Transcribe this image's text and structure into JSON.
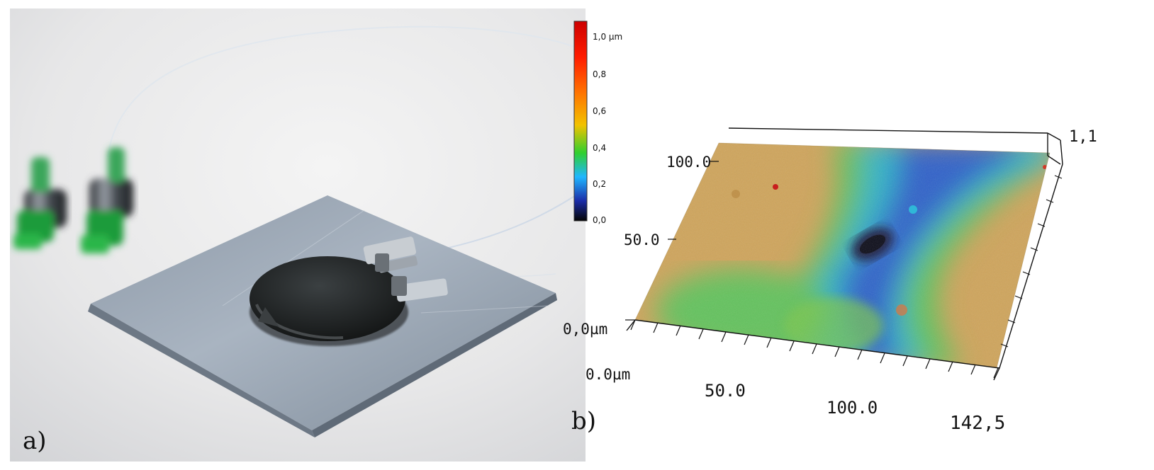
{
  "panels": {
    "a": {
      "label": "a)",
      "depicts": "photo of a circular dark sensor disk bonded to a square aluminium sheet with two optical fibres connected; two green fibre connectors in background"
    },
    "b": {
      "label": "b)",
      "colorbar": {
        "ticks": [
          "1,0 µm",
          "0,8",
          "0,6",
          "0,4",
          "0,2",
          "0,0"
        ],
        "colors": [
          "#cc0000",
          "#ff2a00",
          "#ff7a00",
          "#f2c200",
          "#2fcf2f",
          "#1fb7ff",
          "#1a2aa8",
          "#040404"
        ]
      },
      "axes": {
        "y_ticks": [
          "100.0",
          "50.0",
          "0,0µm"
        ],
        "x_ticks": [
          "0.0µm",
          "50.0",
          "100.0",
          "142,5"
        ],
        "z_tick": "1,1"
      }
    }
  }
}
